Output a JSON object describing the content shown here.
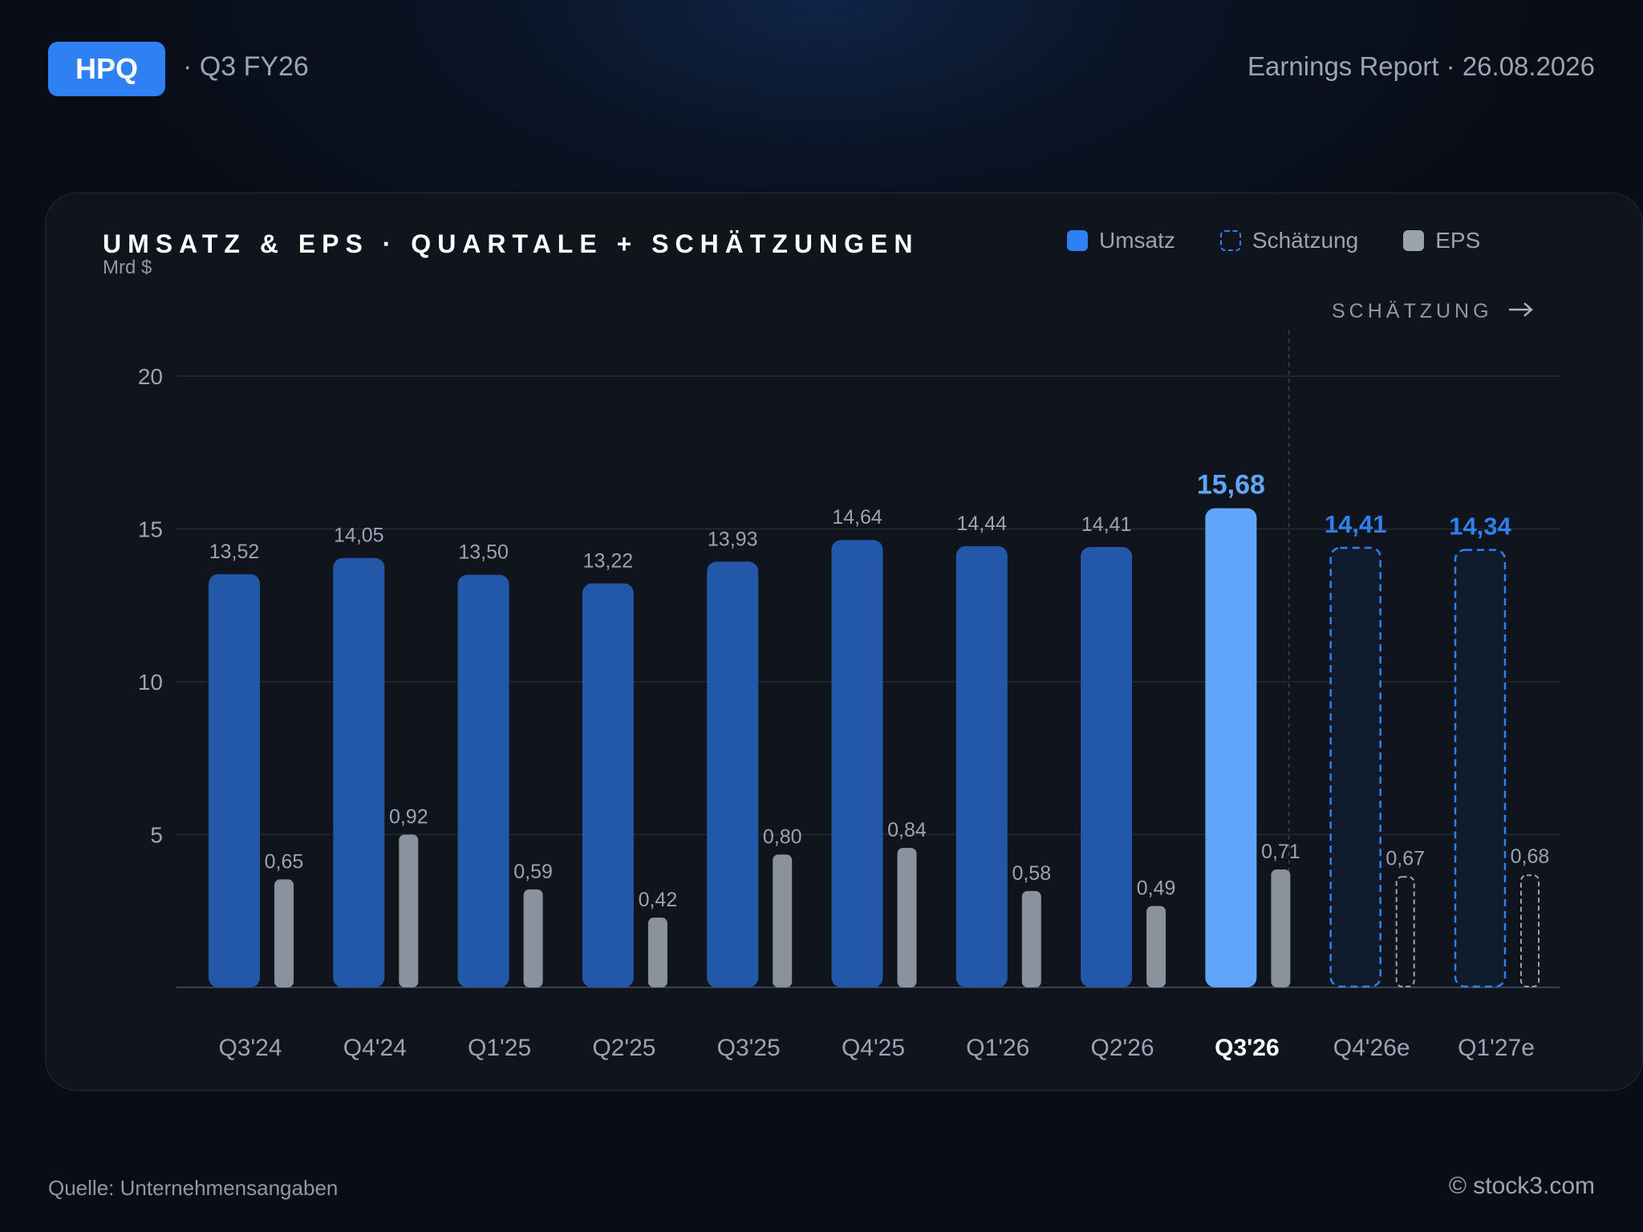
{
  "header": {
    "ticker": "HPQ",
    "quarter": "· Q3 FY26",
    "report": "Earnings Report · 26.08.2026"
  },
  "card": {
    "title": "UMSATZ & EPS · QUARTALE + SCHÄTZUNGEN",
    "unit": "Mrd $",
    "estimate_marker": "SCHÄTZUNG",
    "estimate_marker_icon": "arrow-right-icon"
  },
  "legend": [
    {
      "label": "Umsatz",
      "style": "solid",
      "color": "#2f80f3"
    },
    {
      "label": "Schätzung",
      "style": "dashed",
      "color": "#2f80f3"
    },
    {
      "label": "EPS",
      "style": "solid",
      "color": "#9aa3ae"
    }
  ],
  "colors": {
    "revenue": "#2358a8",
    "revenue_current": "#60a5fa",
    "estimate_border": "#2f80f3",
    "estimate_fill": "#111b2e",
    "eps": "#8a929d",
    "eps_estimate_border": "#9aa3ae",
    "highlight_label": "#60a5fa",
    "estimate_label": "#2f80f3"
  },
  "chart_data": {
    "type": "bar",
    "categories": [
      "Q3'24",
      "Q4'24",
      "Q1'25",
      "Q2'25",
      "Q3'25",
      "Q4'25",
      "Q1'26",
      "Q2'26",
      "Q3'26",
      "Q4'26e",
      "Q1'27e"
    ],
    "series": [
      {
        "name": "Umsatz",
        "values": [
          13.52,
          14.05,
          13.5,
          13.22,
          13.93,
          14.64,
          14.44,
          14.41,
          15.68,
          14.41,
          14.34
        ],
        "labels": [
          "13,52",
          "14,05",
          "13,50",
          "13,22",
          "13,93",
          "14,64",
          "14,44",
          "14,41",
          "15,68",
          "14,41",
          "14,34"
        ]
      },
      {
        "name": "EPS",
        "values": [
          0.65,
          0.92,
          0.59,
          0.42,
          0.8,
          0.84,
          0.58,
          0.49,
          0.71,
          0.67,
          0.68
        ],
        "labels": [
          "0,65",
          "0,92",
          "0,59",
          "0,42",
          "0,80",
          "0,84",
          "0,58",
          "0,49",
          "0,71",
          "0,67",
          "0,68"
        ]
      }
    ],
    "highlight_index": 8,
    "estimate_start_index": 9,
    "title": "UMSATZ & EPS · QUARTALE + SCHÄTZUNGEN",
    "ylabel": "Mrd $",
    "ylim": [
      0,
      20
    ],
    "yticks": [
      5,
      10,
      15,
      20
    ],
    "eps_axis_max": 1.2,
    "grid": true,
    "legend_position": "top-right"
  },
  "footer": {
    "source": "Quelle: Unternehmensangaben",
    "copyright": "© stock3.com"
  }
}
